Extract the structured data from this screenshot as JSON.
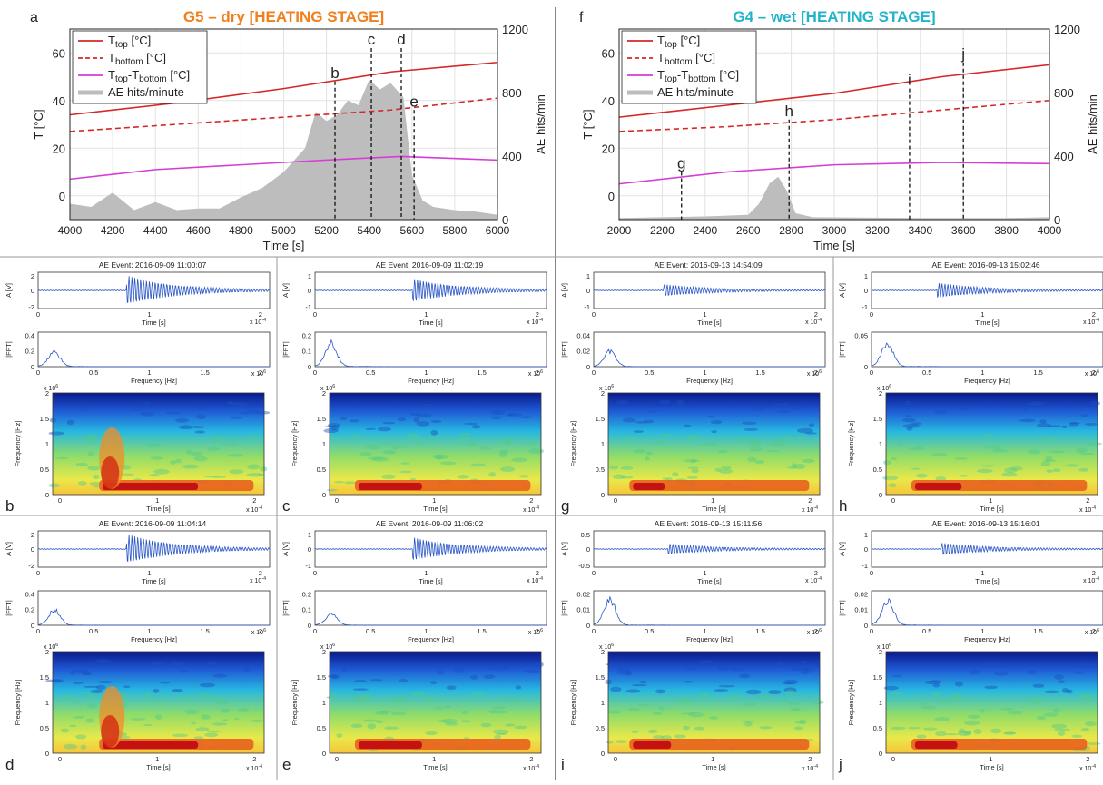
{
  "top": [
    {
      "panel_label": "a",
      "title": "G5 – dry [HEATING STAGE]",
      "title_color": "#f07f1c",
      "xlabel": "Time [s]",
      "ylabel_left": "T [°C]",
      "ylabel_right": "AE hits/min",
      "xlim": [
        4000,
        6000
      ],
      "xticks": [
        4000,
        4200,
        4400,
        4600,
        4800,
        5000,
        5200,
        5400,
        5600,
        5800,
        6000
      ],
      "ylim_left": [
        -10,
        70
      ],
      "yticks_left": [
        0,
        20,
        40,
        60
      ],
      "ylim_right": [
        0,
        1200
      ],
      "yticks_right": [
        0,
        400,
        800,
        1200
      ],
      "legend": [
        {
          "label": "T",
          "sub": "top",
          "suffix": " [°C]",
          "color": "#d62728",
          "dash": "solid"
        },
        {
          "label": "T",
          "sub": "bottom",
          "suffix": " [°C]",
          "color": "#d62728",
          "dash": "dashed"
        },
        {
          "label": "T",
          "sub": "top",
          "mid": "-T",
          "sub2": "bottom",
          "suffix": " [°C]",
          "color": "#d63cd6",
          "dash": "solid"
        },
        {
          "label": "AE hits/minute",
          "color": "#bdbdbd",
          "dash": "fill"
        }
      ],
      "series": {
        "t_top": [
          [
            4000,
            34
          ],
          [
            4500,
            39
          ],
          [
            5000,
            45
          ],
          [
            5500,
            52
          ],
          [
            6000,
            56
          ]
        ],
        "t_bottom": [
          [
            4000,
            27
          ],
          [
            4500,
            30
          ],
          [
            5000,
            33
          ],
          [
            5500,
            36
          ],
          [
            6000,
            41
          ]
        ],
        "t_diff": [
          [
            4000,
            7
          ],
          [
            4400,
            11
          ],
          [
            4800,
            13
          ],
          [
            5200,
            15
          ],
          [
            5550,
            16.5
          ],
          [
            6000,
            15
          ]
        ],
        "ae_hits": [
          [
            4000,
            100
          ],
          [
            4100,
            80
          ],
          [
            4200,
            170
          ],
          [
            4300,
            60
          ],
          [
            4400,
            110
          ],
          [
            4500,
            60
          ],
          [
            4600,
            70
          ],
          [
            4700,
            70
          ],
          [
            4800,
            140
          ],
          [
            4900,
            200
          ],
          [
            5000,
            300
          ],
          [
            5100,
            450
          ],
          [
            5150,
            680
          ],
          [
            5200,
            620
          ],
          [
            5250,
            660
          ],
          [
            5300,
            750
          ],
          [
            5350,
            720
          ],
          [
            5400,
            880
          ],
          [
            5450,
            820
          ],
          [
            5500,
            860
          ],
          [
            5560,
            770
          ],
          [
            5600,
            280
          ],
          [
            5650,
            120
          ],
          [
            5700,
            80
          ],
          [
            5800,
            60
          ],
          [
            5900,
            50
          ],
          [
            6000,
            30
          ]
        ]
      },
      "markers": [
        {
          "label": "b",
          "x": 5240,
          "ytop": 48
        },
        {
          "label": "c",
          "x": 5410,
          "ytop": 62
        },
        {
          "label": "d",
          "x": 5550,
          "ytop": 62
        },
        {
          "label": "e",
          "x": 5610,
          "ytop": 36
        }
      ]
    },
    {
      "panel_label": "f",
      "title": "G4 – wet [HEATING STAGE]",
      "title_color": "#22b5c9",
      "xlabel": "Time [s]",
      "ylabel_left": "T [°C]",
      "ylabel_right": "AE hits/min",
      "xlim": [
        2000,
        4000
      ],
      "xticks": [
        2000,
        2200,
        2400,
        2600,
        2800,
        3000,
        3200,
        3400,
        3600,
        3800,
        4000
      ],
      "ylim_left": [
        -10,
        70
      ],
      "yticks_left": [
        0,
        20,
        40,
        60
      ],
      "ylim_right": [
        0,
        1200
      ],
      "yticks_right": [
        0,
        400,
        800,
        1200
      ],
      "legend": [
        {
          "label": "T",
          "sub": "top",
          "suffix": " [°C]",
          "color": "#d62728",
          "dash": "solid"
        },
        {
          "label": "T",
          "sub": "bottom",
          "suffix": " [°C]",
          "color": "#d62728",
          "dash": "dashed"
        },
        {
          "label": "T",
          "sub": "top",
          "mid": "-T",
          "sub2": "bottom",
          "suffix": " [°C]",
          "color": "#d63cd6",
          "dash": "solid"
        },
        {
          "label": "AE hits/minute",
          "color": "#bdbdbd",
          "dash": "fill"
        }
      ],
      "series": {
        "t_top": [
          [
            2000,
            33
          ],
          [
            2500,
            38
          ],
          [
            3000,
            43
          ],
          [
            3500,
            50
          ],
          [
            4000,
            55
          ]
        ],
        "t_bottom": [
          [
            2000,
            27
          ],
          [
            2500,
            29
          ],
          [
            3000,
            32
          ],
          [
            3500,
            36
          ],
          [
            4000,
            40
          ]
        ],
        "t_diff": [
          [
            2000,
            5
          ],
          [
            2500,
            10
          ],
          [
            3000,
            13
          ],
          [
            3500,
            14
          ],
          [
            4000,
            13.5
          ]
        ],
        "ae_hits": [
          [
            2000,
            10
          ],
          [
            2400,
            20
          ],
          [
            2600,
            30
          ],
          [
            2650,
            100
          ],
          [
            2700,
            230
          ],
          [
            2740,
            270
          ],
          [
            2780,
            180
          ],
          [
            2820,
            40
          ],
          [
            2900,
            15
          ],
          [
            3400,
            10
          ],
          [
            3800,
            10
          ],
          [
            4000,
            15
          ]
        ]
      },
      "markers": [
        {
          "label": "g",
          "x": 2290,
          "ytop": 10
        },
        {
          "label": "h",
          "x": 2790,
          "ytop": 32
        },
        {
          "label": "i",
          "x": 3350,
          "ytop": 45
        },
        {
          "label": "j",
          "x": 3600,
          "ytop": 56
        }
      ]
    }
  ],
  "events": [
    {
      "id": "b",
      "title": "AE Event: 2016-09-09 11:00:07",
      "amp_ylim": "2",
      "amp_ticks": [
        "-2",
        "0",
        "2"
      ],
      "fft_ticks": [
        "0",
        "0.2",
        "0.4"
      ],
      "fft_max": 0.22,
      "amp_burst": [
        0.38,
        0.9
      ],
      "spec_burst": [
        0.22,
        0.45
      ]
    },
    {
      "id": "c",
      "title": "AE Event: 2016-09-09 11:02:19",
      "amp_ylim": "1",
      "amp_ticks": [
        "-1",
        "0",
        "1"
      ],
      "fft_ticks": [
        "0",
        "0.1",
        "0.2"
      ],
      "fft_max": 0.17,
      "amp_burst": [
        0.42,
        0.7
      ],
      "spec_burst": [
        0.12,
        0.3
      ]
    },
    {
      "id": "g",
      "title": "AE Event: 2016-09-13 14:54:09",
      "amp_ylim": "1",
      "amp_ticks": [
        "-1",
        "0",
        "1"
      ],
      "fft_ticks": [
        "0",
        "0.02",
        "0.04"
      ],
      "fft_max": 0.022,
      "amp_burst": [
        0.3,
        0.35
      ],
      "spec_burst": [
        0.1,
        0.15
      ]
    },
    {
      "id": "h",
      "title": "AE Event: 2016-09-13 15:02:46",
      "amp_ylim": "1",
      "amp_ticks": [
        "-1",
        "0",
        "1"
      ],
      "fft_ticks": [
        "0",
        "0.05"
      ],
      "fft_max": 0.043,
      "amp_burst": [
        0.28,
        0.45
      ],
      "spec_burst": [
        0.12,
        0.22
      ]
    },
    {
      "id": "d",
      "title": "AE Event: 2016-09-09 11:04:14",
      "amp_ylim": "2",
      "amp_ticks": [
        "-2",
        "0",
        "2"
      ],
      "fft_ticks": [
        "0",
        "0.2",
        "0.4"
      ],
      "fft_max": 0.22,
      "amp_burst": [
        0.38,
        0.9
      ],
      "spec_burst": [
        0.22,
        0.45
      ]
    },
    {
      "id": "e",
      "title": "AE Event: 2016-09-09 11:06:02",
      "amp_ylim": "1",
      "amp_ticks": [
        "-1",
        "0",
        "1"
      ],
      "fft_ticks": [
        "0",
        "0.1",
        "0.2"
      ],
      "fft_max": 0.08,
      "amp_burst": [
        0.42,
        0.7
      ],
      "spec_burst": [
        0.12,
        0.3
      ]
    },
    {
      "id": "i",
      "title": "AE Event: 2016-09-13 15:11:56",
      "amp_ylim": "0.5",
      "amp_ticks": [
        "-0.5",
        "0",
        "0.5"
      ],
      "fft_ticks": [
        "0",
        "0.01",
        "0.02"
      ],
      "fft_max": 0.018,
      "amp_burst": [
        0.32,
        0.3
      ],
      "spec_burst": [
        0.1,
        0.18
      ]
    },
    {
      "id": "j",
      "title": "AE Event: 2016-09-13 15:16:01",
      "amp_ylim": "1",
      "amp_ticks": [
        "-1",
        "0",
        "1"
      ],
      "fft_ticks": [
        "0",
        "0.01",
        "0.02"
      ],
      "fft_max": 0.018,
      "amp_burst": [
        0.3,
        0.35
      ],
      "spec_burst": [
        0.12,
        0.2
      ]
    }
  ],
  "event_axes": {
    "amp_ylabel": "A [V]",
    "time_xlabel": "Time [s]",
    "time_xticks": [
      "0",
      "1",
      "2"
    ],
    "time_exp": "x 10",
    "time_exp_pow": "-4",
    "fft_ylabel": "|FFT|",
    "freq_xlabel": "Frequency [Hz]",
    "freq_xticks": [
      "0",
      "0.5",
      "1",
      "1.5",
      "2"
    ],
    "freq_exp": "x 10",
    "freq_exp_pow": "6",
    "spec_ylabel": "Frequency [Hz]",
    "spec_yticks": [
      "0",
      "0.5",
      "1",
      "1.5",
      "2"
    ],
    "spec_exp": "x 10",
    "spec_exp_pow": "6"
  }
}
